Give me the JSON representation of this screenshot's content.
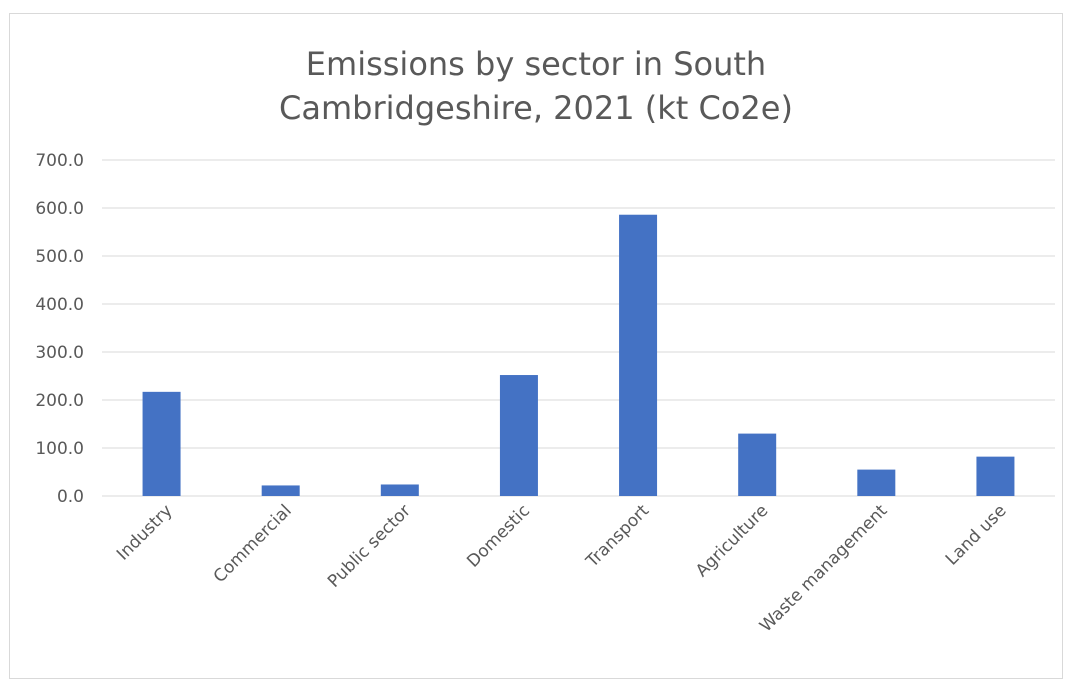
{
  "chart_data": {
    "type": "bar",
    "title": "Emissions by sector in South Cambridgeshire, 2021 (kt Co2e)",
    "xlabel": "",
    "ylabel": "",
    "categories": [
      "Industry",
      "Commercial",
      "Public sector",
      "Domestic",
      "Transport",
      "Agriculture",
      "Waste management",
      "Land use"
    ],
    "values": [
      217,
      22,
      24,
      252,
      586,
      130,
      55,
      82
    ],
    "ylim": [
      0,
      700
    ],
    "y_ticks": [
      "0.0",
      "100.0",
      "200.0",
      "300.0",
      "400.0",
      "500.0",
      "600.0",
      "700.0"
    ],
    "grid": true,
    "legend": "none",
    "bar_color": "#4472c4",
    "grid_color": "#d9d9d9",
    "text_color": "#595959"
  }
}
